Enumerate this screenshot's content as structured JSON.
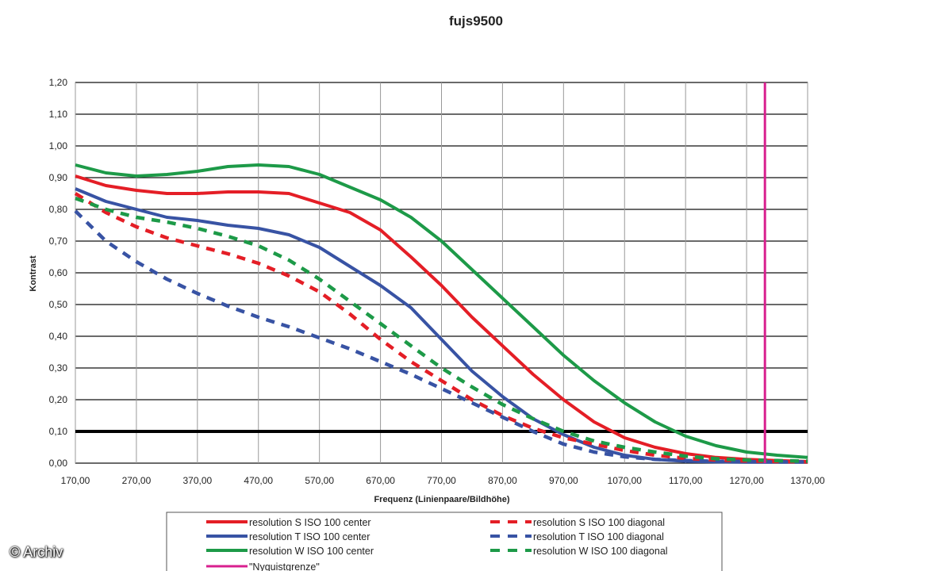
{
  "chart_data": {
    "type": "line",
    "title": "fujs9500",
    "xlabel": "Frequenz (Linienpaare/Bildhöhe)",
    "ylabel": "Kontrast",
    "xlim": [
      170,
      1370
    ],
    "ylim": [
      0,
      1.2
    ],
    "x_ticks": [
      "170,00",
      "270,00",
      "370,00",
      "470,00",
      "570,00",
      "670,00",
      "770,00",
      "870,00",
      "970,00",
      "1070,00",
      "1170,00",
      "1270,00",
      "1370,00"
    ],
    "y_ticks": [
      "0,00",
      "0,10",
      "0,20",
      "0,30",
      "0,40",
      "0,50",
      "0,60",
      "0,70",
      "0,80",
      "0,90",
      "1,00",
      "1,10",
      "1,20"
    ],
    "grid": true,
    "legend_position": "bottom",
    "reference_line": {
      "y": 0.1,
      "color": "#000000"
    },
    "series": [
      {
        "name": "resolution S ISO 100 center",
        "color": "#e41e26",
        "dash": false,
        "x": [
          170,
          220,
          270,
          320,
          370,
          420,
          470,
          520,
          570,
          620,
          670,
          720,
          770,
          820,
          870,
          920,
          970,
          1020,
          1070,
          1120,
          1170,
          1220,
          1270,
          1320,
          1370
        ],
        "y": [
          0.905,
          0.875,
          0.86,
          0.85,
          0.85,
          0.855,
          0.855,
          0.85,
          0.82,
          0.79,
          0.735,
          0.65,
          0.56,
          0.46,
          0.37,
          0.28,
          0.2,
          0.13,
          0.08,
          0.05,
          0.03,
          0.018,
          0.012,
          0.008,
          0.005
        ]
      },
      {
        "name": "resolution T ISO 100 center",
        "color": "#3853a4",
        "dash": false,
        "x": [
          170,
          220,
          270,
          320,
          370,
          420,
          470,
          520,
          570,
          620,
          670,
          720,
          770,
          820,
          870,
          920,
          970,
          1020,
          1070,
          1120,
          1170,
          1220,
          1270,
          1320,
          1370
        ],
        "y": [
          0.865,
          0.825,
          0.8,
          0.775,
          0.765,
          0.75,
          0.74,
          0.72,
          0.68,
          0.62,
          0.56,
          0.49,
          0.39,
          0.29,
          0.21,
          0.14,
          0.09,
          0.05,
          0.025,
          0.012,
          0.006,
          0.004,
          0.003,
          0.003,
          0.003
        ]
      },
      {
        "name": "resolution W ISO 100 center",
        "color": "#1d9a48",
        "dash": false,
        "x": [
          170,
          220,
          270,
          320,
          370,
          420,
          470,
          520,
          570,
          620,
          670,
          720,
          770,
          820,
          870,
          920,
          970,
          1020,
          1070,
          1120,
          1170,
          1220,
          1270,
          1320,
          1370
        ],
        "y": [
          0.94,
          0.915,
          0.905,
          0.91,
          0.92,
          0.935,
          0.94,
          0.935,
          0.91,
          0.87,
          0.83,
          0.775,
          0.7,
          0.61,
          0.52,
          0.43,
          0.34,
          0.26,
          0.19,
          0.13,
          0.085,
          0.055,
          0.035,
          0.025,
          0.018
        ]
      },
      {
        "name": "resolution S ISO 100 diagonal",
        "color": "#e41e26",
        "dash": true,
        "x": [
          170,
          220,
          270,
          320,
          370,
          420,
          470,
          520,
          570,
          620,
          670,
          720,
          770,
          820,
          870,
          920,
          970,
          1020,
          1070,
          1120,
          1170,
          1220,
          1270,
          1320,
          1370
        ],
        "y": [
          0.85,
          0.79,
          0.745,
          0.71,
          0.685,
          0.66,
          0.63,
          0.59,
          0.54,
          0.47,
          0.39,
          0.32,
          0.26,
          0.2,
          0.15,
          0.11,
          0.08,
          0.06,
          0.04,
          0.025,
          0.015,
          0.01,
          0.007,
          0.005,
          0.004
        ]
      },
      {
        "name": "resolution T ISO 100 diagonal",
        "color": "#3853a4",
        "dash": true,
        "x": [
          170,
          220,
          270,
          320,
          370,
          420,
          470,
          520,
          570,
          620,
          670,
          720,
          770,
          820,
          870,
          920,
          970,
          1020,
          1070,
          1120,
          1170,
          1220,
          1270,
          1320,
          1370
        ],
        "y": [
          0.795,
          0.7,
          0.635,
          0.58,
          0.535,
          0.495,
          0.46,
          0.43,
          0.395,
          0.36,
          0.32,
          0.28,
          0.235,
          0.19,
          0.145,
          0.1,
          0.06,
          0.035,
          0.02,
          0.012,
          0.008,
          0.006,
          0.005,
          0.004,
          0.004
        ]
      },
      {
        "name": "resolution W ISO 100 diagonal",
        "color": "#1d9a48",
        "dash": true,
        "x": [
          170,
          220,
          270,
          320,
          370,
          420,
          470,
          520,
          570,
          620,
          670,
          720,
          770,
          820,
          870,
          920,
          970,
          1020,
          1070,
          1120,
          1170,
          1220,
          1270,
          1320,
          1370
        ],
        "y": [
          0.835,
          0.8,
          0.775,
          0.76,
          0.74,
          0.715,
          0.685,
          0.64,
          0.58,
          0.51,
          0.44,
          0.37,
          0.3,
          0.24,
          0.185,
          0.14,
          0.1,
          0.07,
          0.05,
          0.035,
          0.022,
          0.014,
          0.01,
          0.008,
          0.006
        ]
      },
      {
        "name": "\"Nyquistgrenze\"",
        "color": "#d8208f",
        "dash": false,
        "vertical": true,
        "x": [
          1300,
          1300
        ],
        "y": [
          0,
          1.2
        ]
      }
    ]
  },
  "watermark": "© Archiv"
}
